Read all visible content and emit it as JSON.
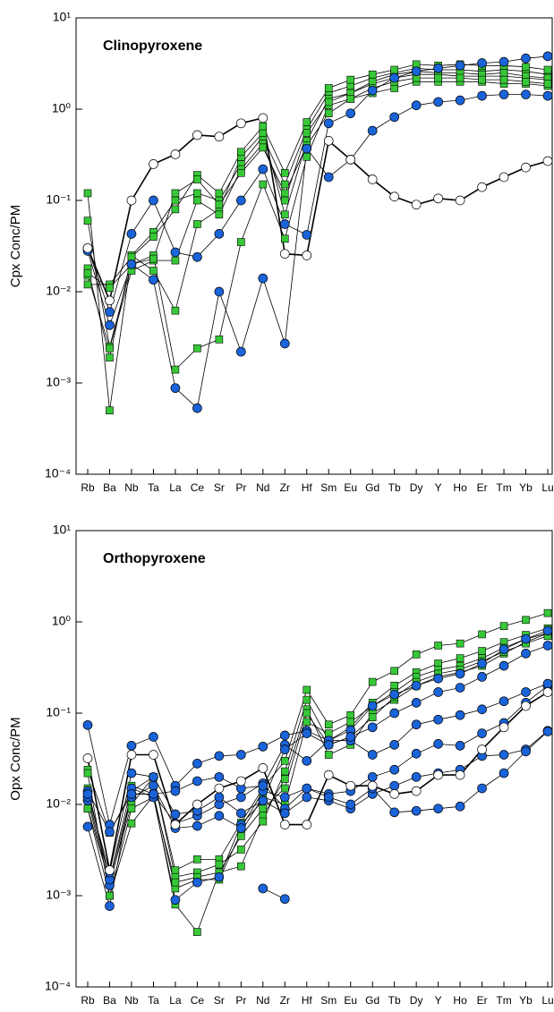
{
  "chart_data": [
    {
      "type": "line",
      "title": "Clinopyroxene",
      "ylabel": "Cpx Conc/PM",
      "yscale": "log",
      "categories": [
        "Rb",
        "Ba",
        "Nb",
        "Ta",
        "La",
        "Ce",
        "Sr",
        "Pr",
        "Nd",
        "Zr",
        "Hf",
        "Sm",
        "Eu",
        "Gd",
        "Tb",
        "Dy",
        "Y",
        "Ho",
        "Er",
        "Tm",
        "Yb",
        "Lu"
      ],
      "ylim": [
        0.0001,
        10
      ],
      "yticks": [
        {
          "value": 0.0001,
          "label": "10⁻⁴"
        },
        {
          "value": 0.001,
          "label": "10⁻³"
        },
        {
          "value": 0.01,
          "label": "10⁻²"
        },
        {
          "value": 0.1,
          "label": "10⁻¹"
        },
        {
          "value": 1,
          "label": "10⁰"
        },
        {
          "value": 10,
          "label": "10¹"
        }
      ],
      "line_color": "#000000",
      "series": [
        {
          "color": "#37c837",
          "marker": "square",
          "values": [
            0.12,
            0.0005,
            0.025,
            0.045,
            0.1,
            0.12,
            0.1,
            0.25,
            0.5,
            0.15,
            0.6,
            1.5,
            1.8,
            2.2,
            2.5,
            2.8,
            2.7,
            2.7,
            2.6,
            2.7,
            2.6,
            2.4
          ]
        },
        {
          "color": "#37c837",
          "marker": "square",
          "values": [
            0.06,
            0.0025,
            0.02,
            0.025,
            0.0014,
            0.0024,
            0.003,
            0.035,
            0.15,
            0.038,
            0.3,
            1.1,
            1.3,
            1.5,
            1.7,
            2.0,
            2.0,
            2.0,
            2.0,
            1.9,
            1.9,
            1.8
          ]
        },
        {
          "color": "#37c837",
          "marker": "square",
          "values": [
            0.018,
            0.0019,
            0.025,
            0.017,
            0.0062,
            0.055,
            0.08,
            0.3,
            0.55,
            0.07,
            0.45,
            1.3,
            1.5,
            1.9,
            2.2,
            2.4,
            2.4,
            2.3,
            2.3,
            2.3,
            2.2,
            2.1
          ]
        },
        {
          "color": "#37c837",
          "marker": "square",
          "values": [
            0.015,
            0.0024,
            0.017,
            0.022,
            0.022,
            0.1,
            0.07,
            0.22,
            0.42,
            0.1,
            0.55,
            1.2,
            1.5,
            2.0,
            2.4,
            2.6,
            2.5,
            2.5,
            2.4,
            2.5,
            2.3,
            2.2
          ]
        },
        {
          "color": "#37c837",
          "marker": "square",
          "values": [
            0.012,
            0.012,
            0.024,
            0.04,
            0.08,
            0.19,
            0.12,
            0.34,
            0.65,
            0.2,
            0.72,
            1.7,
            2.1,
            2.4,
            2.7,
            3.1,
            3.0,
            3.1,
            3.0,
            3.0,
            2.9,
            2.7
          ]
        },
        {
          "color": "#37c837",
          "marker": "square",
          "values": [
            0.016,
            0.011,
            0.02,
            0.023,
            0.12,
            0.17,
            0.09,
            0.2,
            0.38,
            0.12,
            0.4,
            0.9,
            1.3,
            1.7,
            2.0,
            2.2,
            2.2,
            2.2,
            2.1,
            2.1,
            2.0,
            1.9
          ]
        },
        {
          "color": "#1a63d8",
          "marker": "circle",
          "values": [
            0.03,
            0.006,
            0.043,
            0.1,
            0.027,
            0.024,
            0.043,
            0.1,
            0.22,
            0.055,
            0.042,
            0.7,
            0.9,
            1.6,
            2.2,
            2.6,
            2.8,
            3.0,
            3.2,
            3.3,
            3.6,
            3.8
          ]
        },
        {
          "color": "#1a63d8",
          "marker": "circle",
          "values": [
            0.028,
            0.0043,
            0.02,
            0.0135,
            0.00088,
            0.00053,
            0.01,
            0.0022,
            0.014,
            0.0027,
            0.37,
            0.18,
            0.28,
            0.58,
            0.82,
            1.1,
            1.2,
            1.25,
            1.4,
            1.45,
            1.45,
            1.4
          ]
        },
        {
          "color": "#ffffff",
          "marker": "circle",
          "line_width": 1.6,
          "values": [
            0.03,
            0.008,
            0.1,
            0.25,
            0.32,
            0.52,
            0.5,
            0.7,
            0.8,
            0.026,
            0.025,
            0.45,
            0.28,
            0.17,
            0.11,
            0.09,
            0.105,
            0.1,
            0.14,
            0.18,
            0.23,
            0.27
          ]
        }
      ]
    },
    {
      "type": "line",
      "title": "Orthopyroxene",
      "ylabel": "Opx Conc/PM",
      "yscale": "log",
      "categories": [
        "Rb",
        "Ba",
        "Nb",
        "Ta",
        "La",
        "Ce",
        "Sr",
        "Pr",
        "Nd",
        "Zr",
        "Hf",
        "Sm",
        "Eu",
        "Gd",
        "Tb",
        "Dy",
        "Y",
        "Ho",
        "Er",
        "Tm",
        "Yb",
        "Lu"
      ],
      "ylim": [
        0.0001,
        10
      ],
      "yticks": [
        {
          "value": 0.0001,
          "label": "10⁻⁴"
        },
        {
          "value": 0.001,
          "label": "10⁻³"
        },
        {
          "value": 0.01,
          "label": "10⁻²"
        },
        {
          "value": 0.1,
          "label": "10⁻¹"
        },
        {
          "value": 1,
          "label": "10⁰"
        },
        {
          "value": 10,
          "label": "10¹"
        }
      ],
      "line_color": "#000000",
      "series": [
        {
          "color": "#37c837",
          "marker": "square",
          "values": [
            0.024,
            0.0049,
            0.014,
            0.02,
            0.0019,
            0.0025,
            0.0025,
            0.0063,
            0.015,
            0.03,
            0.18,
            0.075,
            0.095,
            0.22,
            0.29,
            0.44,
            0.55,
            0.58,
            0.73,
            0.9,
            1.05,
            1.25
          ]
        },
        {
          "color": "#37c837",
          "marker": "square",
          "values": [
            0.022,
            0.001,
            0.0062,
            0.0125,
            0.0008,
            0.0004,
            0.0018,
            0.0021,
            0.0075,
            0.019,
            0.11,
            0.035,
            0.045,
            0.1,
            0.14,
            0.2,
            0.25,
            0.28,
            0.33,
            0.45,
            0.6,
            0.75
          ]
        },
        {
          "color": "#37c837",
          "marker": "square",
          "values": [
            0.009,
            0.0014,
            0.01,
            0.02,
            0.0016,
            0.0018,
            0.0022,
            0.0032,
            0.0065,
            0.023,
            0.14,
            0.05,
            0.07,
            0.13,
            0.2,
            0.28,
            0.35,
            0.4,
            0.48,
            0.6,
            0.72,
            0.85
          ]
        },
        {
          "color": "#37c837",
          "marker": "square",
          "values": [
            0.015,
            0.0015,
            0.016,
            0.013,
            0.0012,
            0.0015,
            0.0015,
            0.005,
            0.012,
            0.01,
            0.08,
            0.06,
            0.08,
            0.12,
            0.17,
            0.25,
            0.3,
            0.33,
            0.4,
            0.52,
            0.65,
            0.75
          ]
        },
        {
          "color": "#37c837",
          "marker": "square",
          "values": [
            0.009,
            0.001,
            0.009,
            0.012,
            0.0014,
            0.0016,
            0.0018,
            0.0045,
            0.009,
            0.015,
            0.1,
            0.045,
            0.055,
            0.09,
            0.15,
            0.22,
            0.27,
            0.3,
            0.37,
            0.47,
            0.58,
            0.7
          ]
        },
        {
          "color": "#1a63d8",
          "marker": "circle",
          "values": [
            0.074,
            0.006,
            0.044,
            0.055,
            0.016,
            0.028,
            0.034,
            0.035,
            0.043,
            0.057,
            0.064,
            0.05,
            0.065,
            0.12,
            0.16,
            0.2,
            0.24,
            0.27,
            0.35,
            0.5,
            0.65,
            0.8
          ]
        },
        {
          "color": "#1a63d8",
          "marker": "circle",
          "values": [
            0.014,
            0.005,
            0.013,
            0.013,
            0.0062,
            0.0075,
            0.01,
            0.012,
            0.017,
            0.009,
            0.015,
            0.013,
            0.014,
            0.02,
            0.024,
            0.036,
            0.046,
            0.044,
            0.06,
            0.078,
            0.13,
            0.2
          ]
        },
        {
          "color": "#1a63d8",
          "marker": "circle",
          "values": [
            0.0057,
            0.00077,
            0.015,
            0.012,
            0.0009,
            0.0014,
            0.0016,
            0.006,
            0.011,
            0.008,
            0.012,
            0.011,
            0.009,
            0.013,
            0.016,
            0.02,
            0.022,
            0.024,
            0.034,
            0.035,
            0.04,
            0.064
          ]
        },
        {
          "color": "#1a63d8",
          "marker": "circle",
          "values": [
            null,
            null,
            null,
            null,
            null,
            null,
            null,
            null,
            0.0012,
            0.00092,
            null,
            null,
            null,
            null,
            null,
            null,
            null,
            null,
            null,
            null,
            null,
            null
          ]
        },
        {
          "color": "#1a63d8",
          "marker": "circle",
          "values": [
            0.011,
            0.0013,
            0.012,
            0.016,
            0.0055,
            0.0058,
            0.0075,
            0.0055,
            0.014,
            0.012,
            0.015,
            0.012,
            0.01,
            0.015,
            0.0082,
            0.0085,
            0.009,
            0.0095,
            0.015,
            0.022,
            0.038,
            0.063
          ]
        },
        {
          "color": "#1a63d8",
          "marker": "circle",
          "values": [
            0.012,
            0.0015,
            0.013,
            0.013,
            0.014,
            0.018,
            0.02,
            0.015,
            0.016,
            0.045,
            0.03,
            0.05,
            0.05,
            0.035,
            0.045,
            0.075,
            0.085,
            0.095,
            0.11,
            0.135,
            0.17,
            0.21
          ]
        },
        {
          "color": "#1a63d8",
          "marker": "circle",
          "values": [
            0.013,
            0.0018,
            0.022,
            0.02,
            0.0078,
            0.0085,
            0.012,
            0.008,
            0.011,
            0.04,
            0.06,
            0.045,
            0.055,
            0.07,
            0.1,
            0.13,
            0.17,
            0.19,
            0.25,
            0.33,
            0.45,
            0.55
          ]
        },
        {
          "color": "#ffffff",
          "marker": "circle",
          "line_width": 1.6,
          "values": [
            0.032,
            0.0019,
            0.035,
            0.035,
            0.006,
            0.01,
            0.015,
            0.018,
            0.025,
            0.006,
            0.006,
            0.021,
            0.016,
            0.016,
            0.013,
            0.014,
            0.021,
            0.021,
            0.04,
            0.07,
            0.12,
            0.17
          ]
        }
      ]
    }
  ]
}
